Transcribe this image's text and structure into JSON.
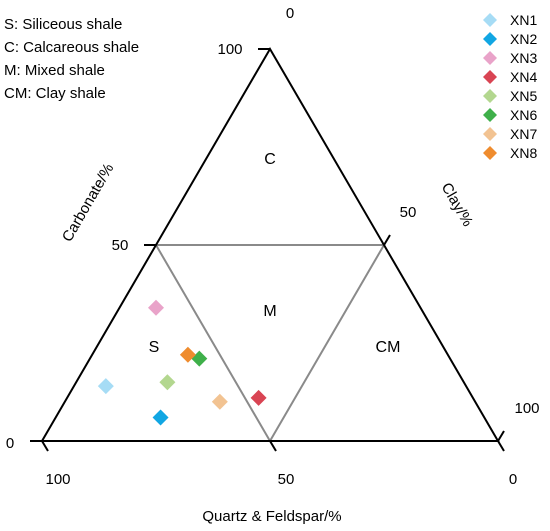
{
  "chart_data": {
    "type": "ternary-scatter",
    "axes": {
      "quartz_feldspar": {
        "label": "Quartz & Feldspar/%",
        "ticks": [
          "100",
          "50",
          "0"
        ]
      },
      "carbonate": {
        "label": "Carbonate/%",
        "ticks": [
          "100",
          "50",
          "0"
        ]
      },
      "clay": {
        "label": "Clay/%",
        "ticks": [
          "0",
          "50",
          "100"
        ]
      }
    },
    "regions": [
      {
        "code": "S",
        "label": "S"
      },
      {
        "code": "C",
        "label": "C"
      },
      {
        "code": "M",
        "label": "M"
      },
      {
        "code": "CM",
        "label": "CM"
      }
    ],
    "region_key": [
      "S: Siliceous shale",
      "C: Calcareous shale",
      "M: Mixed shale",
      "CM: Clay shale"
    ],
    "legend_position": "top-right",
    "series": [
      {
        "name": "XN1",
        "color": "#a6dcf5",
        "quartz_feldspar": 79,
        "carbonate": 14,
        "clay": 7
      },
      {
        "name": "XN2",
        "color": "#11a6e3",
        "quartz_feldspar": 71,
        "carbonate": 6,
        "clay": 23
      },
      {
        "name": "XN3",
        "color": "#e9a3c9",
        "quartz_feldspar": 58,
        "carbonate": 34,
        "clay": 8
      },
      {
        "name": "XN4",
        "color": "#d94453",
        "quartz_feldspar": 47,
        "carbonate": 11,
        "clay": 42
      },
      {
        "name": "XN5",
        "color": "#b3d78f",
        "quartz_feldspar": 65,
        "carbonate": 15,
        "clay": 20
      },
      {
        "name": "XN6",
        "color": "#3fb04a",
        "quartz_feldspar": 55,
        "carbonate": 21,
        "clay": 24
      },
      {
        "name": "XN7",
        "color": "#f2c392",
        "quartz_feldspar": 56,
        "carbonate": 10,
        "clay": 34
      },
      {
        "name": "XN8",
        "color": "#ef8c2e",
        "quartz_feldspar": 57,
        "carbonate": 22,
        "clay": 21
      }
    ]
  }
}
